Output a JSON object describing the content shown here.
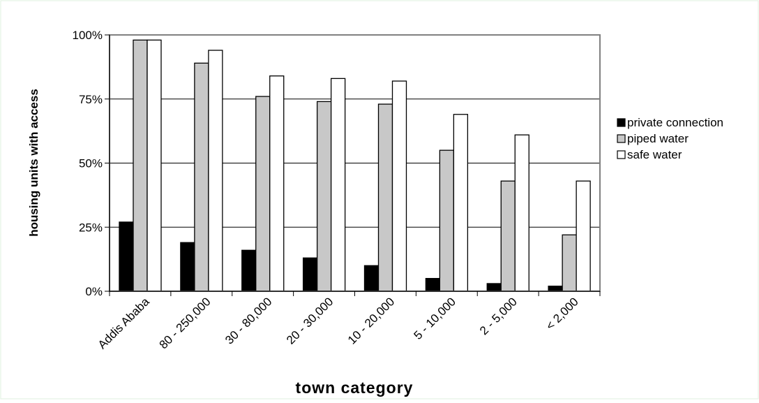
{
  "chart_data": {
    "type": "bar",
    "title": "",
    "xlabel": "town category",
    "ylabel": "housing units with access",
    "categories": [
      "Addis Ababa",
      "80 - 250,000",
      "30 - 80,000",
      "20 - 30,000",
      "10 - 20,000",
      "5 - 10,000",
      "2 - 5,000",
      "< 2,000"
    ],
    "yticks": [
      "0%",
      "25%",
      "50%",
      "75%",
      "100%"
    ],
    "ylim": [
      0,
      100
    ],
    "grid": true,
    "legend_position": "right",
    "series": [
      {
        "name": "private connection",
        "color": "#000000",
        "values": [
          27,
          19,
          16,
          13,
          10,
          5,
          3,
          2
        ]
      },
      {
        "name": "piped water",
        "color": "#c8c8c8",
        "values": [
          98,
          89,
          76,
          74,
          73,
          55,
          43,
          22
        ]
      },
      {
        "name": "safe water",
        "color": "#ffffff",
        "values": [
          98,
          94,
          84,
          83,
          82,
          69,
          61,
          43
        ]
      }
    ]
  }
}
